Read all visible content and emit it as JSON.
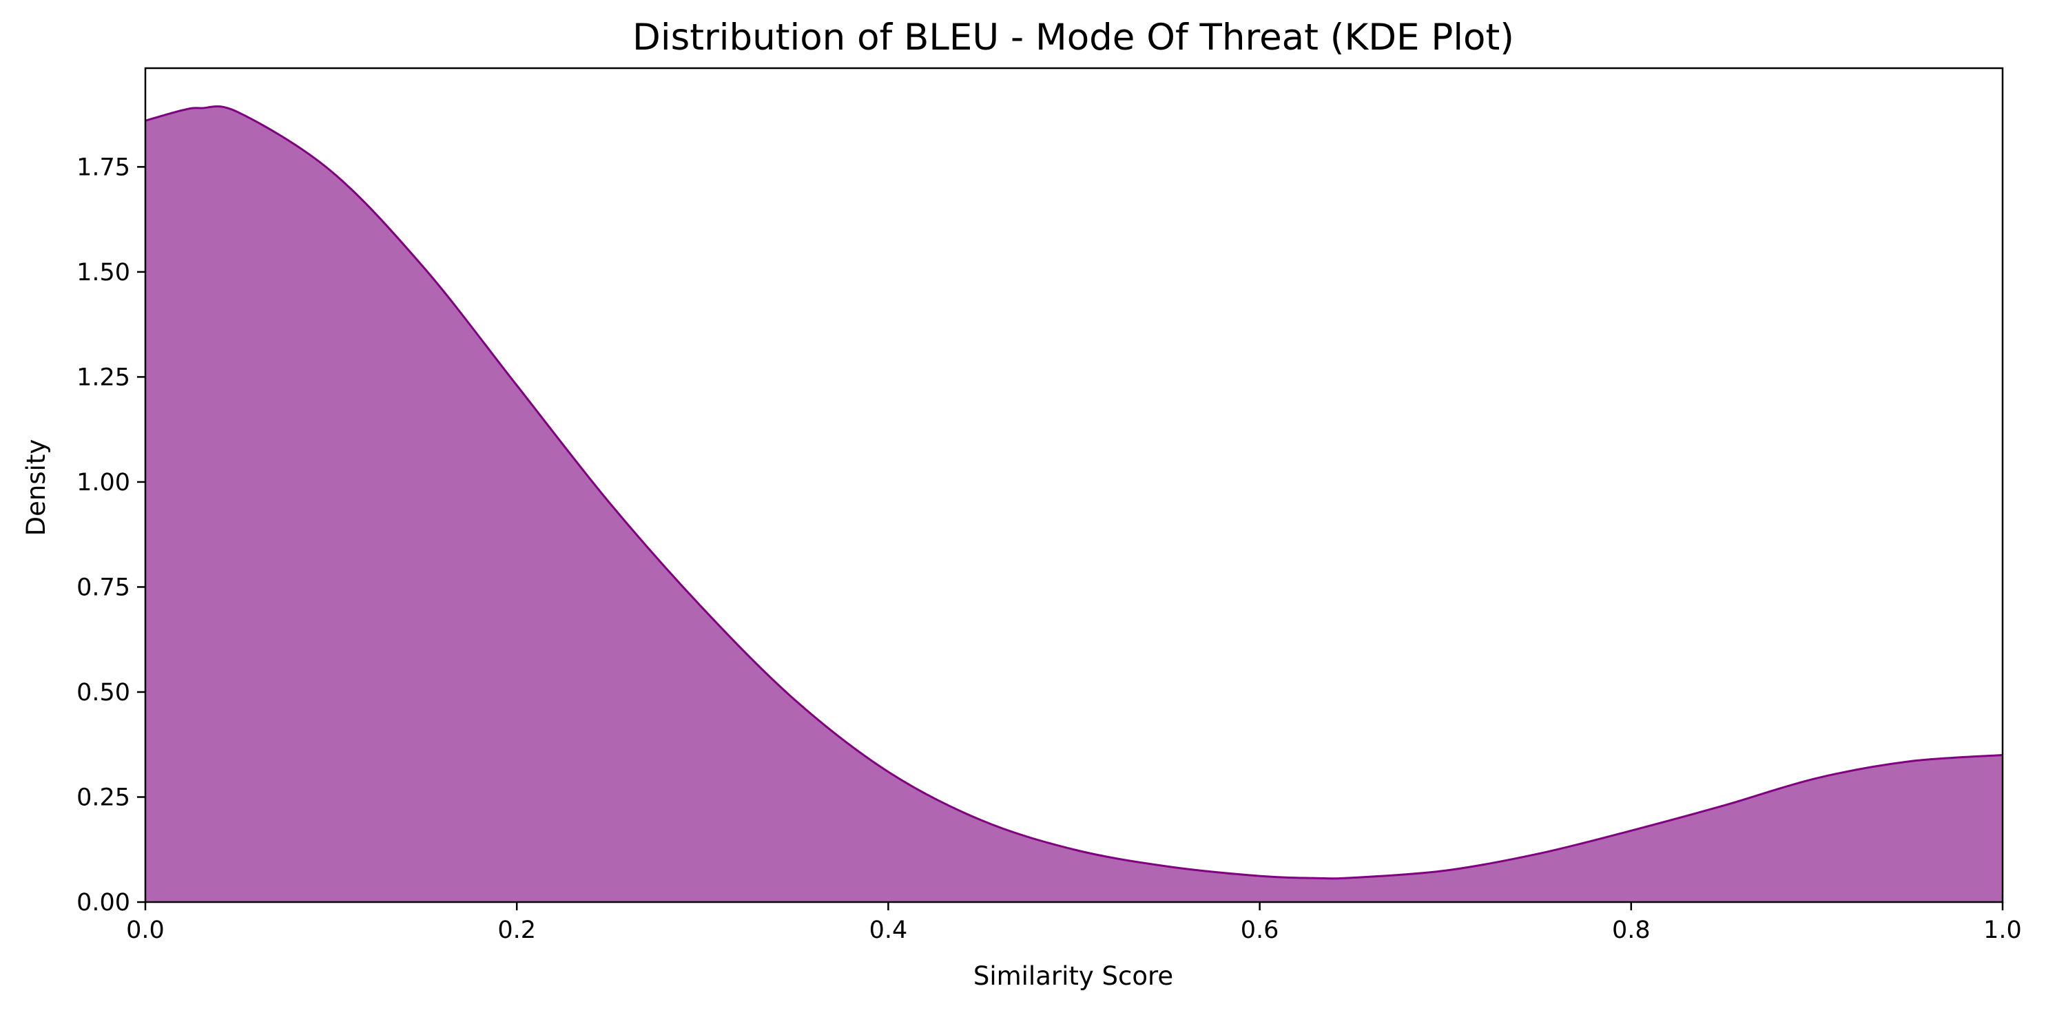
{
  "chart_data": {
    "type": "area",
    "title": "Distribution of BLEU - Mode Of Threat (KDE Plot)",
    "xlabel": "Similarity Score",
    "ylabel": "Density",
    "xlim": [
      0.0,
      1.0
    ],
    "ylim": [
      0.0,
      1.985
    ],
    "x_ticks": [
      "0.0",
      "0.2",
      "0.4",
      "0.6",
      "0.8",
      "1.0"
    ],
    "y_ticks": [
      "0.00",
      "0.25",
      "0.50",
      "0.75",
      "1.00",
      "1.25",
      "1.50",
      "1.75"
    ],
    "grid": false,
    "legend": "none",
    "fill_color": "#b166b1",
    "line_color": "#800080",
    "series": [
      {
        "x": [
          0.0,
          0.02,
          0.03,
          0.05,
          0.1,
          0.15,
          0.2,
          0.25,
          0.3,
          0.35,
          0.4,
          0.45,
          0.5,
          0.55,
          0.6,
          0.63,
          0.65,
          0.7,
          0.75,
          0.8,
          0.85,
          0.9,
          0.95,
          1.0
        ],
        "y": [
          1.86,
          1.885,
          1.89,
          1.88,
          1.74,
          1.51,
          1.23,
          0.95,
          0.7,
          0.48,
          0.31,
          0.195,
          0.125,
          0.085,
          0.062,
          0.057,
          0.058,
          0.075,
          0.115,
          0.17,
          0.23,
          0.295,
          0.335,
          0.35
        ]
      }
    ]
  }
}
